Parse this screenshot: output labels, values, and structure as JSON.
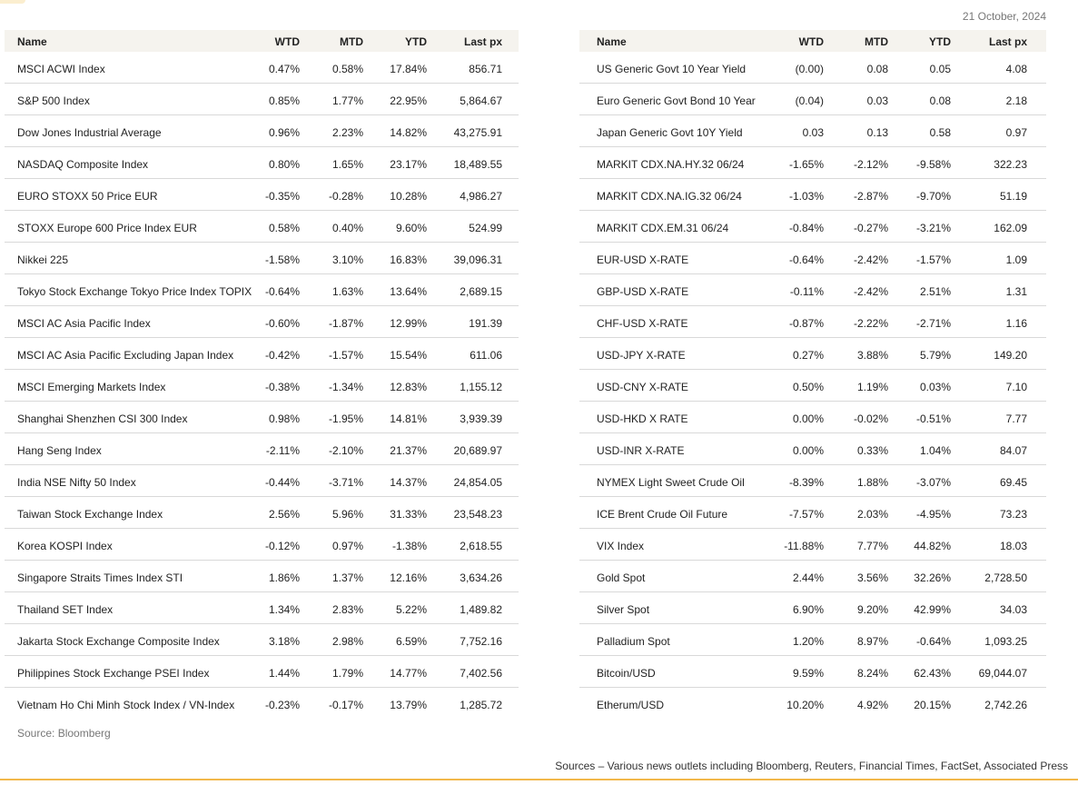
{
  "date": "21 October, 2024",
  "tables": [
    {
      "columns": [
        "Name",
        "WTD",
        "MTD",
        "YTD",
        "Last px"
      ],
      "rows": [
        [
          "MSCI ACWI Index",
          "0.47%",
          "0.58%",
          "17.84%",
          "856.71"
        ],
        [
          "S&P 500 Index",
          "0.85%",
          "1.77%",
          "22.95%",
          "5,864.67"
        ],
        [
          "Dow Jones Industrial Average",
          "0.96%",
          "2.23%",
          "14.82%",
          "43,275.91"
        ],
        [
          "NASDAQ Composite Index",
          "0.80%",
          "1.65%",
          "23.17%",
          "18,489.55"
        ],
        [
          "EURO STOXX 50 Price EUR",
          "-0.35%",
          "-0.28%",
          "10.28%",
          "4,986.27"
        ],
        [
          "STOXX Europe 600 Price Index EUR",
          "0.58%",
          "0.40%",
          "9.60%",
          "524.99"
        ],
        [
          "Nikkei 225",
          "-1.58%",
          "3.10%",
          "16.83%",
          "39,096.31"
        ],
        [
          "Tokyo Stock Exchange Tokyo Price Index TOPIX",
          "-0.64%",
          "1.63%",
          "13.64%",
          "2,689.15"
        ],
        [
          "MSCI AC Asia Pacific Index",
          "-0.60%",
          "-1.87%",
          "12.99%",
          "191.39"
        ],
        [
          "MSCI AC Asia Pacific Excluding Japan Index",
          "-0.42%",
          "-1.57%",
          "15.54%",
          "611.06"
        ],
        [
          "MSCI Emerging Markets Index",
          "-0.38%",
          "-1.34%",
          "12.83%",
          "1,155.12"
        ],
        [
          "Shanghai Shenzhen CSI 300 Index",
          "0.98%",
          "-1.95%",
          "14.81%",
          "3,939.39"
        ],
        [
          "Hang Seng Index",
          "-2.11%",
          "-2.10%",
          "21.37%",
          "20,689.97"
        ],
        [
          "India NSE Nifty 50 Index",
          "-0.44%",
          "-3.71%",
          "14.37%",
          "24,854.05"
        ],
        [
          "Taiwan Stock Exchange Index",
          "2.56%",
          "5.96%",
          "31.33%",
          "23,548.23"
        ],
        [
          "Korea KOSPI Index",
          "-0.12%",
          "0.97%",
          "-1.38%",
          "2,618.55"
        ],
        [
          "Singapore Straits Times Index STI",
          "1.86%",
          "1.37%",
          "12.16%",
          "3,634.26"
        ],
        [
          "Thailand SET Index",
          "1.34%",
          "2.83%",
          "5.22%",
          "1,489.82"
        ],
        [
          "Jakarta Stock Exchange Composite Index",
          "3.18%",
          "2.98%",
          "6.59%",
          "7,752.16"
        ],
        [
          "Philippines Stock Exchange PSEI Index",
          "1.44%",
          "1.79%",
          "14.77%",
          "7,402.56"
        ],
        [
          "Vietnam Ho Chi Minh Stock Index / VN-Index",
          "-0.23%",
          "-0.17%",
          "13.79%",
          "1,285.72"
        ]
      ]
    },
    {
      "columns": [
        "Name",
        "WTD",
        "MTD",
        "YTD",
        "Last px"
      ],
      "rows": [
        [
          "US Generic Govt 10 Year Yield",
          "(0.00)",
          "0.08",
          "0.05",
          "4.08"
        ],
        [
          "Euro Generic Govt Bond 10 Year",
          "(0.04)",
          "0.03",
          "0.08",
          "2.18"
        ],
        [
          "Japan Generic Govt 10Y Yield",
          "0.03",
          "0.13",
          "0.58",
          "0.97"
        ],
        [
          "MARKIT CDX.NA.HY.32 06/24",
          "-1.65%",
          "-2.12%",
          "-9.58%",
          "322.23"
        ],
        [
          "MARKIT CDX.NA.IG.32 06/24",
          "-1.03%",
          "-2.87%",
          "-9.70%",
          "51.19"
        ],
        [
          "MARKIT CDX.EM.31 06/24",
          "-0.84%",
          "-0.27%",
          "-3.21%",
          "162.09"
        ],
        [
          "EUR-USD X-RATE",
          "-0.64%",
          "-2.42%",
          "-1.57%",
          "1.09"
        ],
        [
          "GBP-USD X-RATE",
          "-0.11%",
          "-2.42%",
          "2.51%",
          "1.31"
        ],
        [
          "CHF-USD X-RATE",
          "-0.87%",
          "-2.22%",
          "-2.71%",
          "1.16"
        ],
        [
          "USD-JPY X-RATE",
          "0.27%",
          "3.88%",
          "5.79%",
          "149.20"
        ],
        [
          "USD-CNY X-RATE",
          "0.50%",
          "1.19%",
          "0.03%",
          "7.10"
        ],
        [
          "USD-HKD X RATE",
          "0.00%",
          "-0.02%",
          "-0.51%",
          "7.77"
        ],
        [
          "USD-INR X-RATE",
          "0.00%",
          "0.33%",
          "1.04%",
          "84.07"
        ],
        [
          "NYMEX Light Sweet Crude Oil",
          "-8.39%",
          "1.88%",
          "-3.07%",
          "69.45"
        ],
        [
          "ICE Brent Crude Oil Future",
          "-7.57%",
          "2.03%",
          "-4.95%",
          "73.23"
        ],
        [
          "VIX Index",
          "-11.88%",
          "7.77%",
          "44.82%",
          "18.03"
        ],
        [
          "Gold Spot",
          "2.44%",
          "3.56%",
          "32.26%",
          "2,728.50"
        ],
        [
          "Silver Spot",
          "6.90%",
          "9.20%",
          "42.99%",
          "34.03"
        ],
        [
          "Palladium Spot",
          "1.20%",
          "8.97%",
          "-0.64%",
          "1,093.25"
        ],
        [
          "Bitcoin/USD",
          "9.59%",
          "8.24%",
          "62.43%",
          "69,044.07"
        ],
        [
          "Etherum/USD",
          "10.20%",
          "4.92%",
          "20.15%",
          "2,742.26"
        ]
      ]
    }
  ],
  "source": "Source: Bloomberg",
  "footnote": "Sources – Various news outlets including Bloomberg, Reuters, Financial Times, FactSet, Associated Press"
}
